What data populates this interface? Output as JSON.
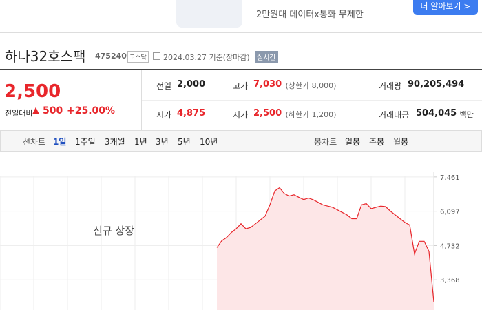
{
  "ad": {
    "text": "2만원대 데이터x통화 무제한",
    "button": "더 알아보기 >"
  },
  "stock": {
    "name": "하나32호스팩",
    "code": "475240",
    "market": "코스닥",
    "date": "2024.03.27 기준(장마감)",
    "realtime": "실시간"
  },
  "quote": {
    "price": "2,500",
    "change_label": "전일대비",
    "change": "500",
    "rate": "+25.00%"
  },
  "summary": [
    {
      "label": "전일",
      "value": "2,000"
    },
    {
      "label": "고가",
      "value": "7,030",
      "note": "(상한가 8,000)"
    },
    {
      "label": "거래량",
      "value": "90,205,494"
    },
    {
      "label": "시가",
      "value": "4,875"
    },
    {
      "label": "저가",
      "value": "2,500",
      "note": "(하한가 1,200)"
    },
    {
      "label": "거래대금",
      "value": "504,045",
      "unit": "백만"
    }
  ],
  "tabs": {
    "line_label": "선차트",
    "periods": [
      "1일",
      "1주일",
      "3개월",
      "1년",
      "3년",
      "5년",
      "10년"
    ],
    "candle_label": "봉차트",
    "candles": [
      "일봉",
      "주봉",
      "월봉"
    ]
  },
  "chart_data": {
    "type": "area",
    "annotation": "신규 상장",
    "values": [
      null,
      null,
      null,
      null,
      null,
      null,
      null,
      null,
      null,
      null,
      null,
      null,
      null,
      null,
      null,
      null,
      null,
      null,
      null,
      null,
      null,
      null,
      null,
      null,
      null,
      null,
      null,
      null,
      null,
      null,
      null,
      null,
      null,
      null,
      null,
      null,
      null,
      null,
      null,
      null,
      null,
      null,
      null,
      null,
      null,
      4650,
      4920,
      5050,
      5250,
      5400,
      5600,
      5400,
      5450,
      5600,
      5750,
      5900,
      6350,
      6900,
      7030,
      6800,
      6700,
      6750,
      6650,
      6560,
      6620,
      6550,
      6450,
      6350,
      6300,
      6250,
      6150,
      6050,
      5950,
      5800,
      5800,
      6350,
      6400,
      6200,
      6250,
      6300,
      6280,
      6100,
      5950,
      5800,
      5650,
      5550,
      4400,
      4900,
      4900,
      4500,
      2500
    ],
    "ylim": [
      2168,
      8334
    ],
    "yticks": [
      {
        "value": 7461,
        "label": "7,461"
      },
      {
        "value": 6097,
        "label": "6,097"
      },
      {
        "value": 4732,
        "label": "4,732"
      },
      {
        "value": 3368,
        "label": "3,368"
      }
    ],
    "color": "#e8262b",
    "fill": "#fde6e7",
    "grid": true
  }
}
